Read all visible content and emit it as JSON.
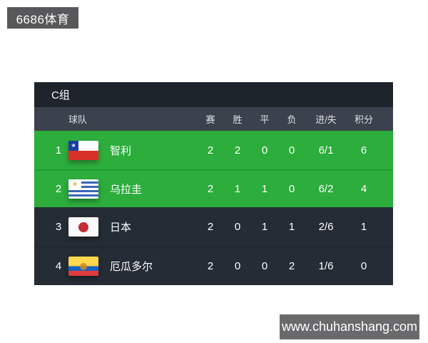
{
  "watermark_top": {
    "label": "6686体育"
  },
  "watermark_bottom": {
    "label": "www.chuhanshang.com"
  },
  "standings": {
    "group_title": "C组",
    "columns": {
      "team": "球队",
      "played": "赛",
      "won": "胜",
      "drawn": "平",
      "lost": "负",
      "goal_diff": "进/失",
      "points": "积分"
    },
    "rows": [
      {
        "rank": "1",
        "team": "智利",
        "flag": "chile-flag",
        "played": "2",
        "won": "2",
        "drawn": "0",
        "lost": "0",
        "goal_diff": "6/1",
        "points": "6",
        "qualified": true
      },
      {
        "rank": "2",
        "team": "乌拉圭",
        "flag": "uruguay-flag",
        "played": "2",
        "won": "1",
        "drawn": "1",
        "lost": "0",
        "goal_diff": "6/2",
        "points": "4",
        "qualified": true
      },
      {
        "rank": "3",
        "team": "日本",
        "flag": "japan-flag",
        "played": "2",
        "won": "0",
        "drawn": "1",
        "lost": "1",
        "goal_diff": "2/6",
        "points": "1",
        "qualified": false
      },
      {
        "rank": "4",
        "team": "厄瓜多尔",
        "flag": "ecuador-flag",
        "played": "2",
        "won": "0",
        "drawn": "0",
        "lost": "2",
        "goal_diff": "1/6",
        "points": "0",
        "qualified": false
      }
    ]
  },
  "icons": {
    "star": "★",
    "sun": "☀"
  },
  "colors": {
    "highlight_green": "#2cad3c",
    "row_dark": "#242c35",
    "header_bar": "#3b424d",
    "title_bar": "#1d242c",
    "watermark_gray_top": "#58585a",
    "watermark_gray_bottom": "#6a6a6c"
  }
}
